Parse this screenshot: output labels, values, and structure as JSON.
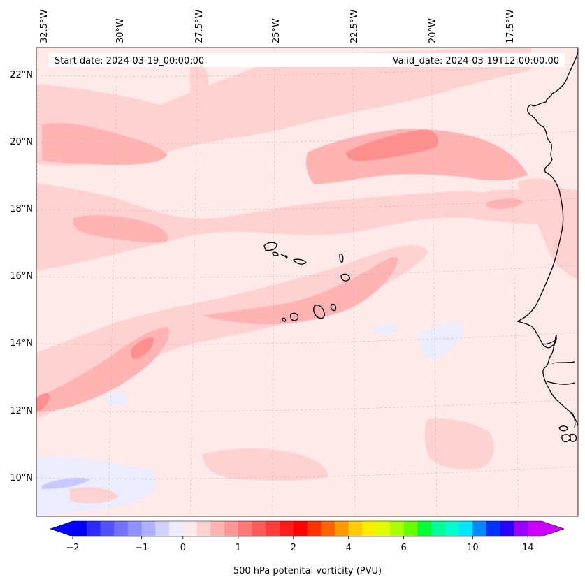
{
  "header": {
    "start_date": "Start date: 2024-03-19_00:00:00",
    "valid_date": "Valid_date: 2024-03-19T12:00:00.00"
  },
  "axes": {
    "lon_labels": [
      "32.5°W",
      "30°W",
      "27.5°W",
      "25°W",
      "22.5°W",
      "20°W",
      "17.5°W"
    ],
    "lat_labels": [
      "22°N",
      "20°N",
      "18°N",
      "16°N",
      "14°N",
      "12°N",
      "10°N"
    ]
  },
  "colorbar": {
    "label": "500 hPa potenital vorticity (PVU)",
    "tick_labels": [
      "−2",
      "−1",
      "0",
      "1",
      "2",
      "4",
      "6",
      "10",
      "14"
    ],
    "colors": [
      "#0000ff",
      "#2a2aff",
      "#5050ff",
      "#7272ff",
      "#9090ff",
      "#b0b0ff",
      "#d2d2ff",
      "#ececff",
      "#ffe9e9",
      "#ffd1d1",
      "#ffb3b3",
      "#ff9696",
      "#ff7878",
      "#ff5a5a",
      "#ff3b3b",
      "#ff1c1c",
      "#ff0000",
      "#ff3300",
      "#ff6600",
      "#ff9900",
      "#ffcc00",
      "#ffee00",
      "#ddff00",
      "#aaff00",
      "#66ff00",
      "#00ff33",
      "#00ff99",
      "#00ffcc",
      "#00e5ff",
      "#0088ff",
      "#0033ff",
      "#2a00ff",
      "#9900ff",
      "#cc00ff"
    ],
    "under_color": "#0000ff",
    "over_color": "#cc00ff"
  },
  "map": {
    "background_color": "#ffe9e9",
    "field_colors": {
      "very_low": "#c8c8ff",
      "low": "#ececff",
      "base": "#ffe9e9",
      "mid": "#ffd1d1",
      "high": "#ffb3b3",
      "peak": "#ff8f8f"
    },
    "coastline_color": "#000000"
  }
}
